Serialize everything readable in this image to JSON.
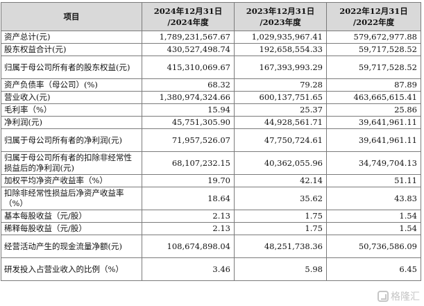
{
  "header": {
    "item": "项目",
    "col1_line1": "2024年12月31日",
    "col1_line2": "/2024年度",
    "col2_line1": "2023年12月31日",
    "col2_line2": "/2023年度",
    "col3_line1": "2022年12月31日",
    "col3_line2": "/2022年度"
  },
  "rows": [
    {
      "label": "资产总计(元)",
      "v2024": "1,789,231,567.67",
      "v2023": "1,029,935,967.41",
      "v2022": "579,672,977.88"
    },
    {
      "label": "股东权益合计(元)",
      "v2024": "430,527,498.74",
      "v2023": "192,658,554.33",
      "v2022": "59,717,528.52"
    },
    {
      "label": "归属于母公司所有者的股东权益(元)",
      "v2024": "415,310,069.67",
      "v2023": "167,393,993.29",
      "v2022": "59,717,528.52"
    },
    {
      "label": "资产负债率（母公司）(%)",
      "v2024": "68.32",
      "v2023": "79.28",
      "v2022": "87.89"
    },
    {
      "label": "营业收入(元)",
      "v2024": "1,380,974,324.66",
      "v2023": "600,137,751.65",
      "v2022": "463,665,615.41"
    },
    {
      "label": "毛利率（%）",
      "v2024": "15.94",
      "v2023": "25.37",
      "v2022": "25.86"
    },
    {
      "label": "净利润(元)",
      "v2024": "45,751,305.90",
      "v2023": "44,928,561.71",
      "v2022": "39,641,961.11"
    },
    {
      "label": "归属于母公司所有者的净利润(元)",
      "v2024": "71,957,526.07",
      "v2023": "47,750,724.61",
      "v2022": "39,641,961.11"
    },
    {
      "label": "归属于母公司所有者的扣除非经常性损益后的净利润(元)",
      "v2024": "68,107,232.15",
      "v2023": "40,362,055.96",
      "v2022": "34,749,704.13"
    },
    {
      "label": "加权平均净资产收益率（%）",
      "v2024": "19.70",
      "v2023": "42.14",
      "v2022": "51.11"
    },
    {
      "label": "扣除非经常性损益后净资产收益率（%）",
      "v2024": "18.64",
      "v2023": "35.62",
      "v2022": "43.83"
    },
    {
      "label": "基本每股收益（元/股）",
      "v2024": "2.13",
      "v2023": "1.75",
      "v2022": "1.54"
    },
    {
      "label": "稀释每股收益（元/股）",
      "v2024": "2.13",
      "v2023": "1.75",
      "v2022": "1.54"
    },
    {
      "label": "经营活动产生的现金流量净额(元)",
      "v2024": "108,674,898.04",
      "v2023": "48,251,738.36",
      "v2022": "50,736,586.09"
    },
    {
      "label": "研发投入占营业收入的比例（%）",
      "v2024": "3.46",
      "v2023": "5.98",
      "v2022": "6.45"
    }
  ],
  "watermark": "格隆汇"
}
